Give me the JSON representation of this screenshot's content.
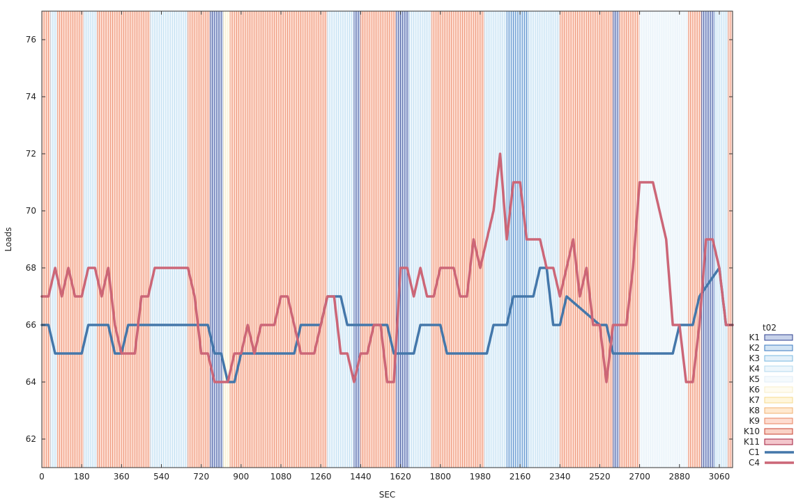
{
  "chart_data": {
    "type": "line",
    "title": "",
    "xlabel": "SEC",
    "ylabel": "Loads",
    "xlim": [
      0,
      3120
    ],
    "ylim": [
      61,
      77
    ],
    "xticks": [
      0,
      180,
      360,
      540,
      720,
      900,
      1080,
      1260,
      1440,
      1620,
      1800,
      1980,
      2160,
      2340,
      2520,
      2700,
      2880,
      3060
    ],
    "yticks": [
      62,
      64,
      66,
      68,
      70,
      72,
      74,
      76
    ],
    "grid": false,
    "legend": {
      "title": "t02",
      "placement": "right",
      "entries": [
        {
          "label": "K1",
          "kind": "band",
          "fill": "#c7d2ea",
          "stroke": "#2c3f8f"
        },
        {
          "label": "K2",
          "kind": "band",
          "fill": "#d2e4f4",
          "stroke": "#3a78c0"
        },
        {
          "label": "K3",
          "kind": "band",
          "fill": "#e3f0fa",
          "stroke": "#7ab8e0"
        },
        {
          "label": "K4",
          "kind": "band",
          "fill": "#edf6fc",
          "stroke": "#b4d8ee"
        },
        {
          "label": "K5",
          "kind": "band",
          "fill": "#f5fafd",
          "stroke": "#e2eef7"
        },
        {
          "label": "K6",
          "kind": "band",
          "fill": "#fffcf0",
          "stroke": "#f7eec8"
        },
        {
          "label": "K7",
          "kind": "band",
          "fill": "#fff6dc",
          "stroke": "#f4d98c"
        },
        {
          "label": "K8",
          "kind": "band",
          "fill": "#ffe9d0",
          "stroke": "#f0b070"
        },
        {
          "label": "K9",
          "kind": "band",
          "fill": "#fddcd0",
          "stroke": "#e8805e"
        },
        {
          "label": "K10",
          "kind": "band",
          "fill": "#f9d2c6",
          "stroke": "#c84030"
        },
        {
          "label": "K11",
          "kind": "band",
          "fill": "#f3c6cc",
          "stroke": "#a01a3a"
        },
        {
          "label": "C1",
          "kind": "line",
          "color": "#4477aa"
        },
        {
          "label": "C4",
          "kind": "line",
          "color": "#cc6677"
        }
      ]
    },
    "bands": [
      {
        "x0": 0,
        "x1": 40,
        "cls": "K9"
      },
      {
        "x0": 40,
        "x1": 70,
        "cls": "K4"
      },
      {
        "x0": 70,
        "x1": 190,
        "cls": "K9"
      },
      {
        "x0": 190,
        "x1": 250,
        "cls": "K4"
      },
      {
        "x0": 250,
        "x1": 490,
        "cls": "K9"
      },
      {
        "x0": 490,
        "x1": 660,
        "cls": "K4"
      },
      {
        "x0": 660,
        "x1": 760,
        "cls": "K9"
      },
      {
        "x0": 760,
        "x1": 820,
        "cls": "K1"
      },
      {
        "x0": 820,
        "x1": 850,
        "cls": "K6"
      },
      {
        "x0": 850,
        "x1": 1290,
        "cls": "K9"
      },
      {
        "x0": 1290,
        "x1": 1410,
        "cls": "K4"
      },
      {
        "x0": 1410,
        "x1": 1440,
        "cls": "K1"
      },
      {
        "x0": 1440,
        "x1": 1600,
        "cls": "K9"
      },
      {
        "x0": 1600,
        "x1": 1660,
        "cls": "K1"
      },
      {
        "x0": 1660,
        "x1": 1760,
        "cls": "K4"
      },
      {
        "x0": 1760,
        "x1": 2000,
        "cls": "K9"
      },
      {
        "x0": 2000,
        "x1": 2100,
        "cls": "K4"
      },
      {
        "x0": 2100,
        "x1": 2200,
        "cls": "K2"
      },
      {
        "x0": 2200,
        "x1": 2340,
        "cls": "K4"
      },
      {
        "x0": 2340,
        "x1": 2580,
        "cls": "K9"
      },
      {
        "x0": 2580,
        "x1": 2610,
        "cls": "K1"
      },
      {
        "x0": 2610,
        "x1": 2700,
        "cls": "K9"
      },
      {
        "x0": 2700,
        "x1": 2920,
        "cls": "K5"
      },
      {
        "x0": 2920,
        "x1": 2980,
        "cls": "K9"
      },
      {
        "x0": 2980,
        "x1": 3040,
        "cls": "K1"
      },
      {
        "x0": 3040,
        "x1": 3100,
        "cls": "K4"
      },
      {
        "x0": 3100,
        "x1": 3120,
        "cls": "K9"
      }
    ],
    "series": [
      {
        "name": "C1",
        "color": "#4477aa",
        "x": [
          0,
          30,
          60,
          180,
          210,
          300,
          330,
          360,
          390,
          750,
          780,
          810,
          840,
          870,
          900,
          1140,
          1170,
          1260,
          1290,
          1350,
          1380,
          1560,
          1590,
          1680,
          1710,
          1800,
          1830,
          2010,
          2040,
          2100,
          2130,
          2220,
          2250,
          2280,
          2310,
          2340,
          2370,
          2520,
          2550,
          2580,
          2610,
          2850,
          2880,
          2940,
          2970,
          3060,
          3090,
          3120
        ],
        "y": [
          66,
          66,
          65,
          65,
          66,
          66,
          65,
          65,
          66,
          66,
          65,
          65,
          64,
          64,
          65,
          65,
          66,
          66,
          67,
          67,
          66,
          66,
          65,
          65,
          66,
          66,
          65,
          65,
          66,
          66,
          67,
          67,
          68,
          68,
          66,
          66,
          67,
          66,
          66,
          65,
          65,
          65,
          66,
          66,
          67,
          68,
          66,
          66
        ]
      },
      {
        "name": "C4",
        "color": "#cc6677",
        "x": [
          0,
          30,
          60,
          90,
          120,
          150,
          180,
          210,
          240,
          270,
          300,
          330,
          360,
          390,
          420,
          450,
          480,
          510,
          540,
          570,
          600,
          630,
          660,
          690,
          720,
          750,
          780,
          810,
          840,
          870,
          900,
          930,
          960,
          990,
          1020,
          1050,
          1080,
          1110,
          1140,
          1170,
          1200,
          1230,
          1260,
          1290,
          1320,
          1350,
          1380,
          1410,
          1440,
          1470,
          1500,
          1530,
          1560,
          1590,
          1620,
          1650,
          1680,
          1710,
          1740,
          1770,
          1800,
          1830,
          1860,
          1890,
          1920,
          1950,
          1980,
          2010,
          2040,
          2070,
          2100,
          2130,
          2160,
          2190,
          2220,
          2250,
          2280,
          2310,
          2340,
          2370,
          2400,
          2430,
          2460,
          2490,
          2520,
          2550,
          2580,
          2610,
          2640,
          2670,
          2700,
          2730,
          2760,
          2790,
          2820,
          2850,
          2880,
          2910,
          2940,
          2970,
          3000,
          3030,
          3060,
          3090,
          3120
        ],
        "y": [
          67,
          67,
          68,
          67,
          68,
          67,
          67,
          68,
          68,
          67,
          68,
          66,
          65,
          65,
          65,
          67,
          67,
          68,
          68,
          68,
          68,
          68,
          68,
          67,
          65,
          65,
          64,
          64,
          64,
          65,
          65,
          66,
          65,
          66,
          66,
          66,
          67,
          67,
          66,
          65,
          65,
          65,
          66,
          67,
          67,
          65,
          65,
          64,
          65,
          65,
          66,
          66,
          64,
          64,
          68,
          68,
          67,
          68,
          67,
          67,
          68,
          68,
          68,
          67,
          67,
          69,
          68,
          69,
          70,
          72,
          69,
          71,
          71,
          69,
          69,
          69,
          68,
          68,
          67,
          68,
          69,
          67,
          68,
          66,
          66,
          64,
          66,
          66,
          66,
          68,
          71,
          71,
          71,
          70,
          69,
          66,
          66,
          64,
          64,
          66,
          69,
          69,
          68,
          66,
          66
        ]
      }
    ]
  }
}
